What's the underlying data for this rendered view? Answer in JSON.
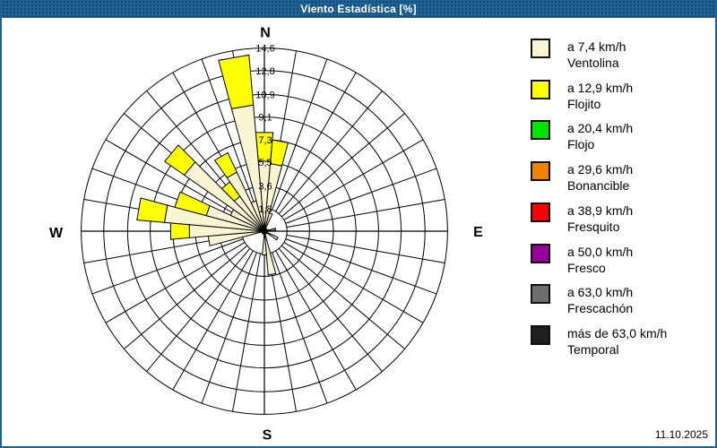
{
  "window": {
    "title": "Viento Estadística [%]"
  },
  "footer": {
    "date": "11.10.2025"
  },
  "colors": {
    "title_bar": "#1E6296",
    "frame_border": "#1E6296",
    "grid": "#000000",
    "ventolina": "#F9F5D2",
    "flojito": "#FFFF00",
    "flojo": "#00E400",
    "bonancible": "#EF8200",
    "fresquito": "#FA0000",
    "fresco": "#990099",
    "frescachon": "#6E6E6E",
    "temporal": "#202020"
  },
  "legend": {
    "items": [
      {
        "speed": "a 7,4 km/h",
        "name": "Ventolina",
        "color_key": "ventolina"
      },
      {
        "speed": "a 12,9 km/h",
        "name": "Flojito",
        "color_key": "flojito"
      },
      {
        "speed": "a 20,4 km/h",
        "name": "Flojo",
        "color_key": "flojo"
      },
      {
        "speed": "a 29,6 km/h",
        "name": "Bonancible",
        "color_key": "bonancible"
      },
      {
        "speed": "a 38,9 km/h",
        "name": "Fresquito",
        "color_key": "fresquito"
      },
      {
        "speed": "a 50,0 km/h",
        "name": "Fresco",
        "color_key": "fresco"
      },
      {
        "speed": "a 63,0 km/h",
        "name": "Frescachón",
        "color_key": "frescachon"
      },
      {
        "speed": "más de 63,0 km/h",
        "name": "Temporal",
        "color_key": "temporal"
      }
    ]
  },
  "chart_data": {
    "type": "windrose-bar",
    "title": "Viento Estadística [%]",
    "units": "%",
    "legend_position": "right",
    "rmax": 14.6,
    "sector_width_deg": 10,
    "grid": {
      "rings": 8,
      "spoke_step_deg": 10
    },
    "radial_ticks": [
      1.8,
      3.6,
      5.5,
      7.3,
      9.1,
      10.9,
      12.8,
      14.6
    ],
    "radial_tick_labels": [
      "1,8",
      "3,6",
      "5,5",
      "7,3",
      "9,1",
      "10,9",
      "12,8",
      "14,6"
    ],
    "compass_labels": [
      "N",
      "E",
      "S",
      "W"
    ],
    "series": [
      {
        "name": "Ventolina",
        "color_key": "ventolina"
      },
      {
        "name": "Flojito",
        "color_key": "flojito"
      }
    ],
    "note": "Stacked frequency [%] per 10° wind direction sector; only Ventolina and Flojito classes have non-zero values.",
    "bars": [
      {
        "bearing": 0,
        "ventolina": 5.6,
        "flojito": 2.3
      },
      {
        "bearing": 10,
        "ventolina": 5.4,
        "flojito": 1.9
      },
      {
        "bearing": 20,
        "ventolina": 1.5,
        "flojito": 0
      },
      {
        "bearing": 80,
        "ventolina": 0.9,
        "flojito": 0
      },
      {
        "bearing": 120,
        "ventolina": 1.2,
        "flojito": 0
      },
      {
        "bearing": 170,
        "ventolina": 3.5,
        "flojito": 0
      },
      {
        "bearing": 180,
        "ventolina": 1.9,
        "flojito": 0
      },
      {
        "bearing": 260,
        "ventolina": 4.5,
        "flojito": 0
      },
      {
        "bearing": 270,
        "ventolina": 6.0,
        "flojito": 1.5
      },
      {
        "bearing": 280,
        "ventolina": 8.0,
        "flojito": 2.2
      },
      {
        "bearing": 290,
        "ventolina": 4.8,
        "flojito": 2.6
      },
      {
        "bearing": 300,
        "ventolina": 3.0,
        "flojito": 0
      },
      {
        "bearing": 310,
        "ventolina": 7.8,
        "flojito": 1.9
      },
      {
        "bearing": 320,
        "ventolina": 3.4,
        "flojito": 1.4
      },
      {
        "bearing": 330,
        "ventolina": 5.2,
        "flojito": 1.7
      },
      {
        "bearing": 340,
        "ventolina": 2.5,
        "flojito": 0
      },
      {
        "bearing": 350,
        "ventolina": 10.1,
        "flojito": 4.0
      }
    ]
  }
}
